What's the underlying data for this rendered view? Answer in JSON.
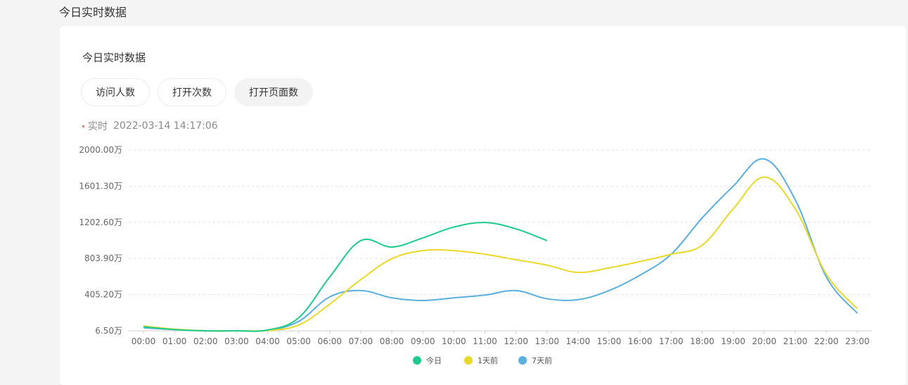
{
  "page": {
    "title": "今日实时数据"
  },
  "card": {
    "title": "今日实时数据"
  },
  "tabs": [
    {
      "label": "访问人数",
      "active": false
    },
    {
      "label": "打开次数",
      "active": false
    },
    {
      "label": "打开页面数",
      "active": true
    }
  ],
  "realtime": {
    "label": "实时",
    "timestamp": "2022-03-14 14:17:06"
  },
  "chart_data": {
    "type": "line",
    "y_ticks": [
      "2000.00万",
      "1601.30万",
      "1202.60万",
      "803.90万",
      "405.20万",
      "6.50万"
    ],
    "y_tick_values": [
      2000.0,
      1601.3,
      1202.6,
      803.9,
      405.2,
      6.5
    ],
    "ylim": [
      6.5,
      2000.0
    ],
    "grid": true,
    "legend_position": "bottom-center",
    "x": [
      "00:00",
      "01:00",
      "02:00",
      "03:00",
      "04:00",
      "05:00",
      "06:00",
      "07:00",
      "08:00",
      "09:00",
      "10:00",
      "11:00",
      "12:00",
      "13:00",
      "14:00",
      "15:00",
      "16:00",
      "17:00",
      "18:00",
      "19:00",
      "20:00",
      "21:00",
      "22:00",
      "23:00"
    ],
    "series": [
      {
        "name": "今日",
        "color": "#1ecb8c",
        "values": [
          50,
          20,
          6.5,
          6.5,
          15,
          150,
          600,
          1000,
          930,
          1030,
          1150,
          1200,
          1130,
          1000,
          null,
          null,
          null,
          null,
          null,
          null,
          null,
          null,
          null,
          null
        ]
      },
      {
        "name": "1天前",
        "color": "#ead82a",
        "values": [
          60,
          25,
          6.5,
          6.5,
          10,
          70,
          300,
          570,
          800,
          890,
          890,
          850,
          790,
          730,
          650,
          700,
          770,
          850,
          950,
          1350,
          1700,
          1350,
          630,
          250
        ]
      },
      {
        "name": "7天前",
        "color": "#5aafdf",
        "values": [
          40,
          20,
          6.5,
          6.5,
          12,
          110,
          380,
          450,
          370,
          340,
          370,
          400,
          450,
          360,
          350,
          450,
          620,
          850,
          1250,
          1600,
          1900,
          1450,
          600,
          200
        ]
      }
    ]
  }
}
